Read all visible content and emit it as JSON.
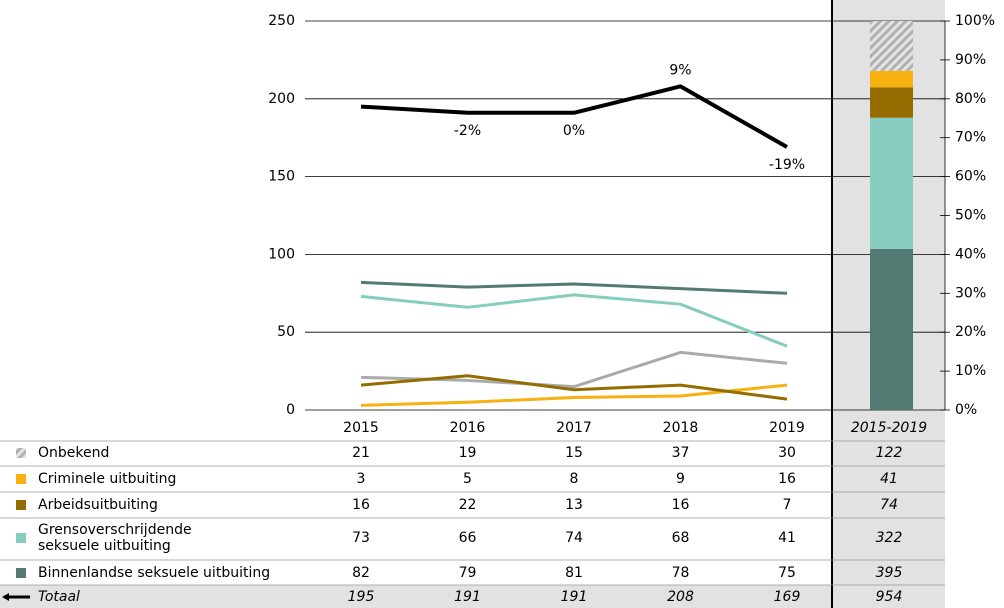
{
  "chart_data": {
    "type": "line",
    "categories": [
      "2015",
      "2016",
      "2017",
      "2018",
      "2019"
    ],
    "total_label": "2015-2019",
    "ylim": [
      0,
      250
    ],
    "yticks": [
      0,
      50,
      100,
      150,
      200,
      250
    ],
    "y2lim": [
      0,
      100
    ],
    "y2ticks": [
      {
        "value": 0,
        "label": "0%"
      },
      {
        "value": 10,
        "label": "10%"
      },
      {
        "value": 20,
        "label": "20%"
      },
      {
        "value": 30,
        "label": "30%"
      },
      {
        "value": 40,
        "label": "40%"
      },
      {
        "value": 50,
        "label": "50%"
      },
      {
        "value": 60,
        "label": "60%"
      },
      {
        "value": 70,
        "label": "70%"
      },
      {
        "value": 80,
        "label": "80%"
      },
      {
        "value": 90,
        "label": "90%"
      },
      {
        "value": 100,
        "label": "100%"
      }
    ],
    "grid": true,
    "series": [
      {
        "name": "Onbekend",
        "color": "#aaaaaa",
        "pattern": "hatch",
        "values": [
          21,
          19,
          15,
          37,
          30
        ],
        "total": 122
      },
      {
        "name": "Criminele uitbuiting",
        "color": "#f7b112",
        "values": [
          3,
          5,
          8,
          9,
          16
        ],
        "total": 41
      },
      {
        "name": "Arbeidsuitbuiting",
        "color": "#946c00",
        "values": [
          16,
          22,
          13,
          16,
          7
        ],
        "total": 74
      },
      {
        "name": "Grensoverschrijdende\nseksuele uitbuiting",
        "color": "#86cdc0",
        "values": [
          73,
          66,
          74,
          68,
          41
        ],
        "total": 322
      },
      {
        "name": "Binnenlandse seksuele uitbuiting",
        "color": "#527a73",
        "values": [
          82,
          79,
          81,
          78,
          75
        ],
        "total": 395
      },
      {
        "name": "Totaal",
        "color": "#000000",
        "values": [
          195,
          191,
          191,
          208,
          169
        ],
        "total": 954,
        "change_labels": [
          null,
          "-2%",
          "0%",
          "9%",
          "-19%"
        ]
      }
    ]
  }
}
